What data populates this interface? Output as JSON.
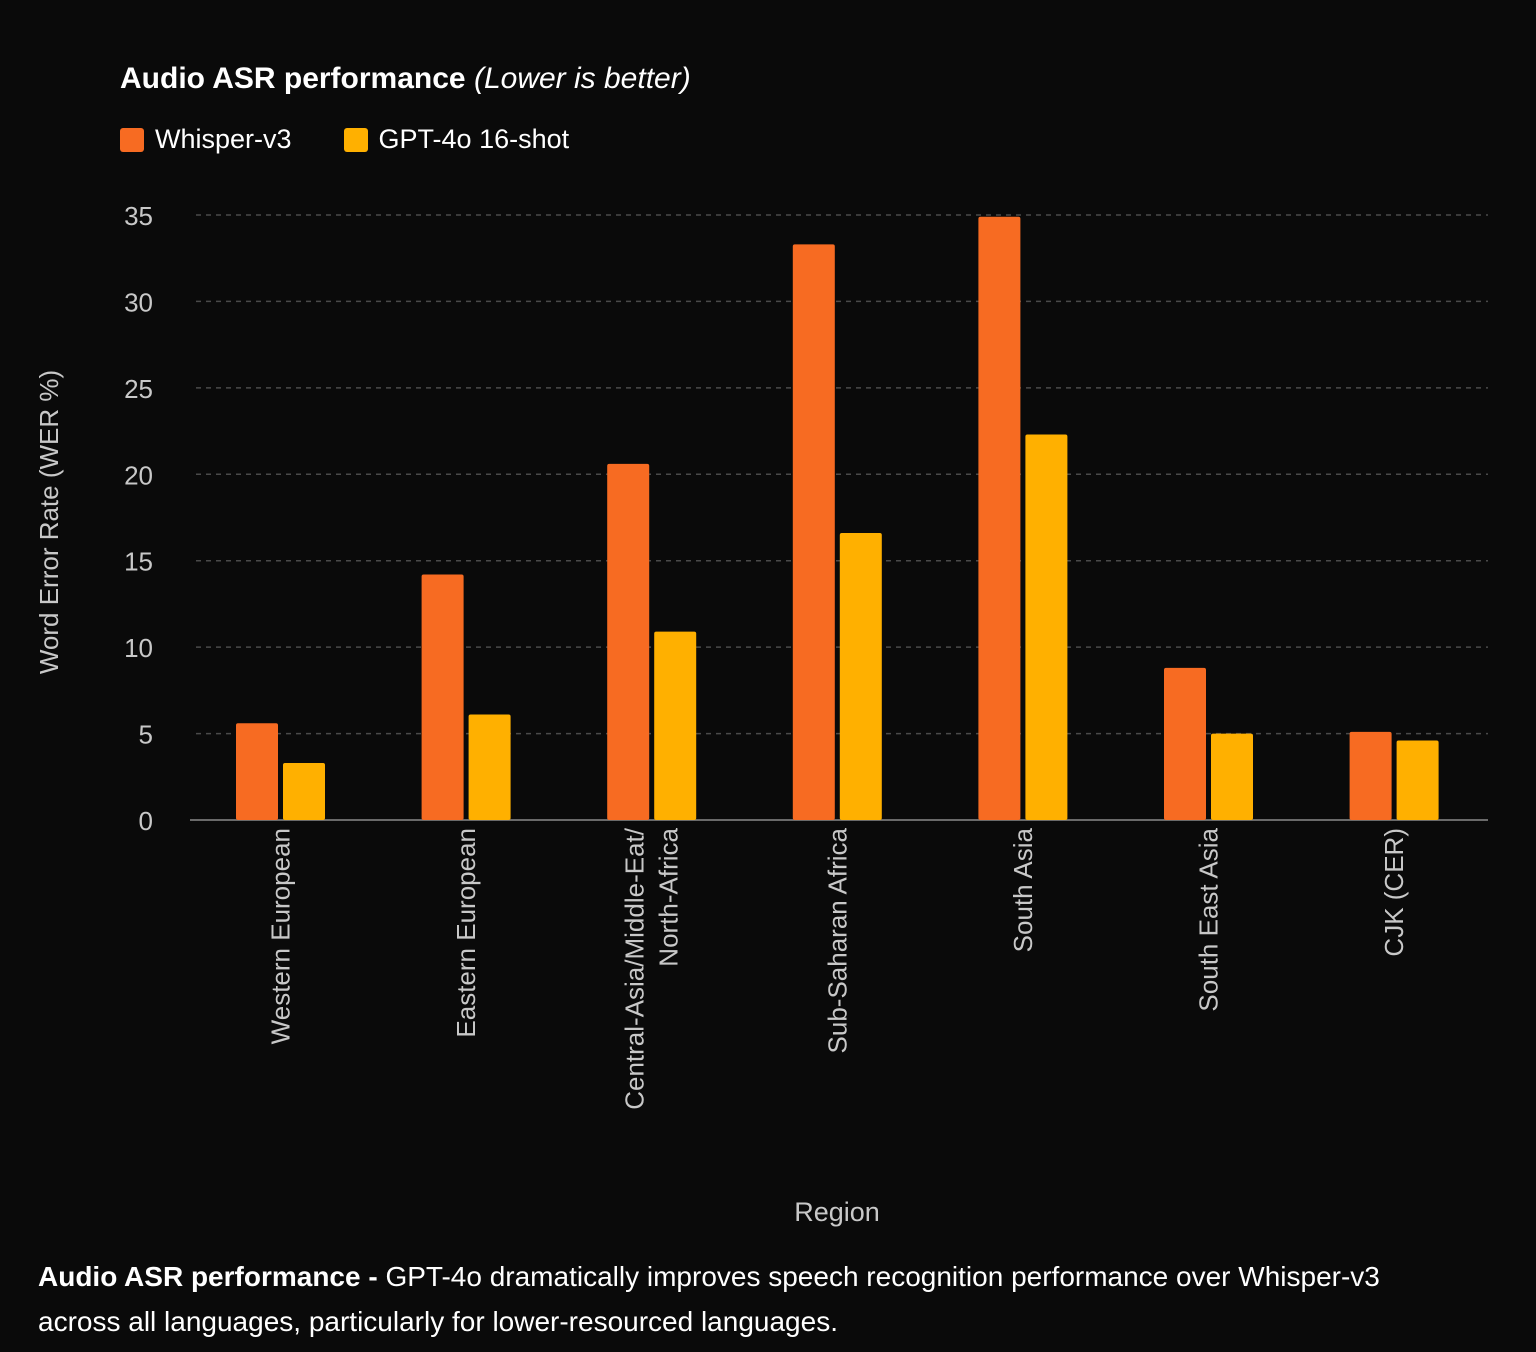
{
  "colors": {
    "background": "#0a0a0a",
    "grid": "#4a4a4a",
    "axis": "#6a6a6a",
    "tick_text": "#c8c8c8"
  },
  "chart_data": {
    "type": "bar",
    "title": "Audio ASR performance",
    "subtitle": "(Lower is better)",
    "xlabel": "Region",
    "ylabel": "Word Error Rate (WER %)",
    "ylim": [
      0,
      35
    ],
    "yticks": [
      0,
      5,
      10,
      15,
      20,
      25,
      30,
      35
    ],
    "grid": true,
    "legend_position": "top-left",
    "categories": [
      "Western European",
      "Eastern European",
      "Central-Asia/Middle-Eat/ North-Africa",
      "Sub-Saharan Africa",
      "South Asia",
      "South East Asia",
      "CJK (CER)"
    ],
    "category_lines": [
      [
        "Western European"
      ],
      [
        "Eastern European"
      ],
      [
        "Central-Asia/Middle-Eat/",
        "North-Africa"
      ],
      [
        "Sub-Saharan Africa"
      ],
      [
        "South Asia"
      ],
      [
        "South East Asia"
      ],
      [
        "CJK (CER)"
      ]
    ],
    "series": [
      {
        "name": "Whisper-v3",
        "color": "#f76b22",
        "values": [
          5.6,
          14.2,
          20.6,
          33.3,
          34.9,
          8.8,
          5.1
        ]
      },
      {
        "name": "GPT-4o 16-shot",
        "color": "#ffb000",
        "values": [
          3.3,
          6.1,
          10.9,
          16.6,
          22.3,
          5.0,
          4.6
        ]
      }
    ]
  },
  "caption": {
    "head": "Audio ASR performance - ",
    "body": "GPT-4o dramatically improves speech recognition performance over Whisper-v3 across all languages, particularly for lower-resourced languages."
  }
}
